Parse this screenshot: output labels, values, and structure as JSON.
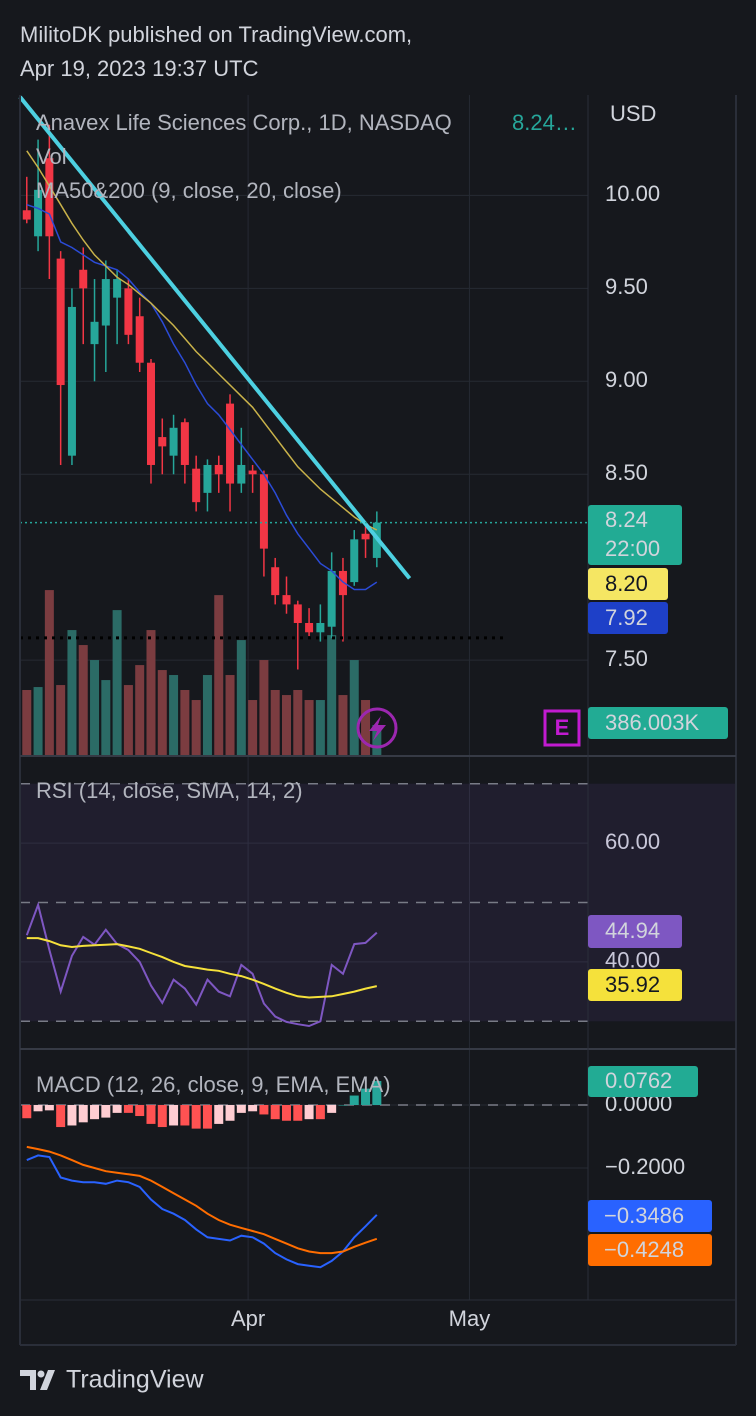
{
  "header": {
    "line1": "MilitoDK published on TradingView.com,",
    "line2": "Apr 19, 2023 19:37 UTC"
  },
  "footer": {
    "brand": "TradingView"
  },
  "chart_data": [
    {
      "type": "candlestick",
      "title": "Anavex Life Sciences Corp., 1D, NASDAQ",
      "title_value": "8.24…",
      "currency": "USD",
      "indicator": "MA50&200 (9, close, 20, close)",
      "open": [
        9.92,
        9.78,
        10.2,
        9.66,
        8.6,
        9.6,
        9.2,
        9.3,
        9.45,
        9.5,
        9.35,
        9.1,
        8.7,
        8.6,
        8.78,
        8.53,
        8.4,
        8.55,
        8.88,
        8.45,
        8.52,
        8.5,
        8.0,
        7.85,
        7.8,
        7.7,
        7.65,
        7.68,
        7.98,
        7.92,
        8.18,
        8.05
      ],
      "high": [
        10.1,
        10.3,
        10.38,
        9.7,
        9.5,
        9.72,
        9.55,
        9.65,
        9.6,
        9.55,
        9.45,
        9.12,
        8.8,
        8.82,
        8.8,
        8.6,
        8.58,
        8.6,
        8.93,
        8.75,
        8.55,
        8.52,
        8.05,
        7.95,
        7.82,
        7.78,
        7.8,
        8.08,
        8.05,
        8.2,
        8.22,
        8.3
      ],
      "low": [
        9.85,
        9.7,
        9.55,
        8.55,
        8.55,
        9.2,
        9.0,
        9.05,
        9.2,
        9.2,
        9.05,
        8.45,
        8.5,
        8.5,
        8.45,
        8.3,
        8.3,
        8.4,
        8.3,
        8.4,
        8.4,
        7.95,
        7.8,
        7.75,
        7.45,
        7.63,
        7.6,
        7.62,
        7.6,
        7.9,
        8.05,
        8.0
      ],
      "close": [
        9.87,
        10.03,
        9.78,
        8.98,
        9.4,
        9.5,
        9.32,
        9.55,
        9.55,
        9.25,
        9.1,
        8.55,
        8.65,
        8.75,
        8.55,
        8.35,
        8.55,
        8.5,
        8.45,
        8.55,
        8.5,
        8.1,
        7.85,
        7.8,
        7.7,
        7.65,
        7.7,
        7.98,
        7.85,
        8.15,
        8.15,
        8.24
      ],
      "last_label": "8.24",
      "countdown": "22:00",
      "up_color": "#26a69a",
      "down_color": "#f23645",
      "lines": [
        {
          "color": "#2b4bd6",
          "values": [
            9.95,
            9.93,
            9.9,
            9.75,
            9.72,
            9.68,
            9.64,
            9.62,
            9.6,
            9.55,
            9.48,
            9.42,
            9.32,
            9.2,
            9.1,
            8.98,
            8.88,
            8.82,
            8.74,
            8.66,
            8.58,
            8.5,
            8.4,
            8.28,
            8.18,
            8.1,
            8.02,
            7.98,
            7.92,
            7.88,
            7.88,
            7.92
          ],
          "last_label": "7.92"
        },
        {
          "color": "#c9b24a",
          "values": [
            10.24,
            10.15,
            10.05,
            9.95,
            9.85,
            9.76,
            9.68,
            9.62,
            9.56,
            9.52,
            9.47,
            9.42,
            9.36,
            9.3,
            9.23,
            9.16,
            9.1,
            9.04,
            8.98,
            8.92,
            8.86,
            8.78,
            8.7,
            8.62,
            8.54,
            8.48,
            8.42,
            8.37,
            8.32,
            8.27,
            8.23,
            8.2
          ],
          "last_label": "8.20"
        }
      ],
      "trendline": {
        "color": "#4dd0e1",
        "x": [
          -0.6,
          33.9
        ],
        "values": [
          10.53,
          7.94
        ]
      },
      "dotted_level": {
        "value": 7.62,
        "x": [
          -0.6,
          42.3
        ]
      },
      "xlim": [
        -0.6,
        49.7
      ],
      "ylim": [
        6.99,
        10.54
      ],
      "yticks": [
        {
          "value": 10,
          "label": "10.00"
        },
        {
          "value": 9.5,
          "label": "9.50"
        },
        {
          "value": 9,
          "label": "9.00"
        },
        {
          "value": 8.5,
          "label": "8.50"
        },
        {
          "value": 7.5,
          "label": "7.50"
        }
      ]
    },
    {
      "type": "bar",
      "title": "Vol",
      "values": [
        837000,
        875000,
        2124000,
        901000,
        1609000,
        1416000,
        1223000,
        965000,
        1866000,
        901000,
        1158000,
        1609000,
        1094000,
        1030000,
        837000,
        708000,
        1030000,
        2059000,
        1030000,
        1480000,
        708000,
        1223000,
        837000,
        772000,
        837000,
        708000,
        708000,
        1544000,
        772000,
        1223000,
        708000,
        386003
      ],
      "last_label": "386.003K",
      "up_color": "#2b6b66",
      "down_color": "#7b3c40",
      "ylim": [
        0,
        8500000
      ],
      "earnings_marker": "E"
    },
    {
      "type": "line",
      "title": "RSI (14, close, SMA, 14, 2)",
      "series": [
        {
          "color": "#7e57c2",
          "values": [
            44.5,
            49.6,
            42,
            35,
            41,
            44.2,
            42.9,
            45.4,
            43,
            42,
            40,
            36,
            33.1,
            37,
            35.5,
            32.8,
            37,
            35,
            34.2,
            39.5,
            38,
            33,
            30.8,
            29.9,
            29.5,
            29.2,
            30,
            39.5,
            38,
            43,
            43.2,
            44.94
          ],
          "last_label": "44.94"
        },
        {
          "color": "#f5e13b",
          "values": [
            44,
            44,
            43.5,
            42.8,
            42.5,
            42.7,
            42.8,
            42.9,
            43,
            42.6,
            42.2,
            41.5,
            40.8,
            40,
            39.3,
            39,
            38.7,
            38.5,
            38,
            37.6,
            37,
            36.3,
            35.5,
            34.8,
            34.2,
            34,
            34.1,
            34.2,
            34.6,
            35,
            35.5,
            35.92
          ],
          "last_label": "35.92"
        }
      ],
      "band": [
        30,
        70
      ],
      "midline": 50,
      "ylim": [
        25.5,
        74.5
      ],
      "yticks": [
        {
          "value": 40,
          "label": "40.00"
        },
        {
          "value": 60,
          "label": "60.00"
        }
      ]
    },
    {
      "type": "macd",
      "title": "MACD (12, 26, close, 9, EMA, EMA)",
      "histogram": [
        -0.042,
        -0.02,
        -0.017,
        -0.07,
        -0.065,
        -0.055,
        -0.045,
        -0.04,
        -0.025,
        -0.025,
        -0.035,
        -0.06,
        -0.07,
        -0.065,
        -0.065,
        -0.075,
        -0.075,
        -0.06,
        -0.05,
        -0.025,
        -0.02,
        -0.03,
        -0.045,
        -0.05,
        -0.05,
        -0.045,
        -0.045,
        -0.025,
        0,
        0.03,
        0.052,
        0.0762
      ],
      "histogram_label": "0.0762",
      "macd": [
        -0.175,
        -0.16,
        -0.165,
        -0.23,
        -0.24,
        -0.245,
        -0.245,
        -0.25,
        -0.24,
        -0.245,
        -0.26,
        -0.3,
        -0.33,
        -0.345,
        -0.365,
        -0.395,
        -0.42,
        -0.425,
        -0.43,
        -0.415,
        -0.42,
        -0.44,
        -0.47,
        -0.49,
        -0.505,
        -0.51,
        -0.515,
        -0.495,
        -0.465,
        -0.42,
        -0.385,
        -0.3486
      ],
      "macd_label": "−0.3486",
      "macd_color": "#2962ff",
      "signal": [
        -0.133,
        -0.14,
        -0.148,
        -0.16,
        -0.175,
        -0.19,
        -0.2,
        -0.21,
        -0.215,
        -0.22,
        -0.225,
        -0.24,
        -0.26,
        -0.28,
        -0.3,
        -0.32,
        -0.345,
        -0.365,
        -0.38,
        -0.39,
        -0.4,
        -0.41,
        -0.425,
        -0.44,
        -0.455,
        -0.465,
        -0.47,
        -0.47,
        -0.465,
        -0.45,
        -0.437,
        -0.4248
      ],
      "signal_label": "−0.4248",
      "signal_color": "#ff6d00",
      "hist_colors": {
        "grow_up": "#26a69a",
        "fall_up": "#b2dfdb",
        "grow_down": "#ff5252",
        "fall_down": "#ffcdd2"
      },
      "ylim": [
        -0.619,
        0.1746
      ],
      "yticks": [
        {
          "value": 0,
          "label": "0.0000"
        },
        {
          "value": -0.2,
          "label": "−0.2000"
        }
      ],
      "xticks": [
        {
          "value": 19.6,
          "label": "Apr"
        },
        {
          "value": 39.2,
          "label": "May"
        }
      ]
    }
  ]
}
